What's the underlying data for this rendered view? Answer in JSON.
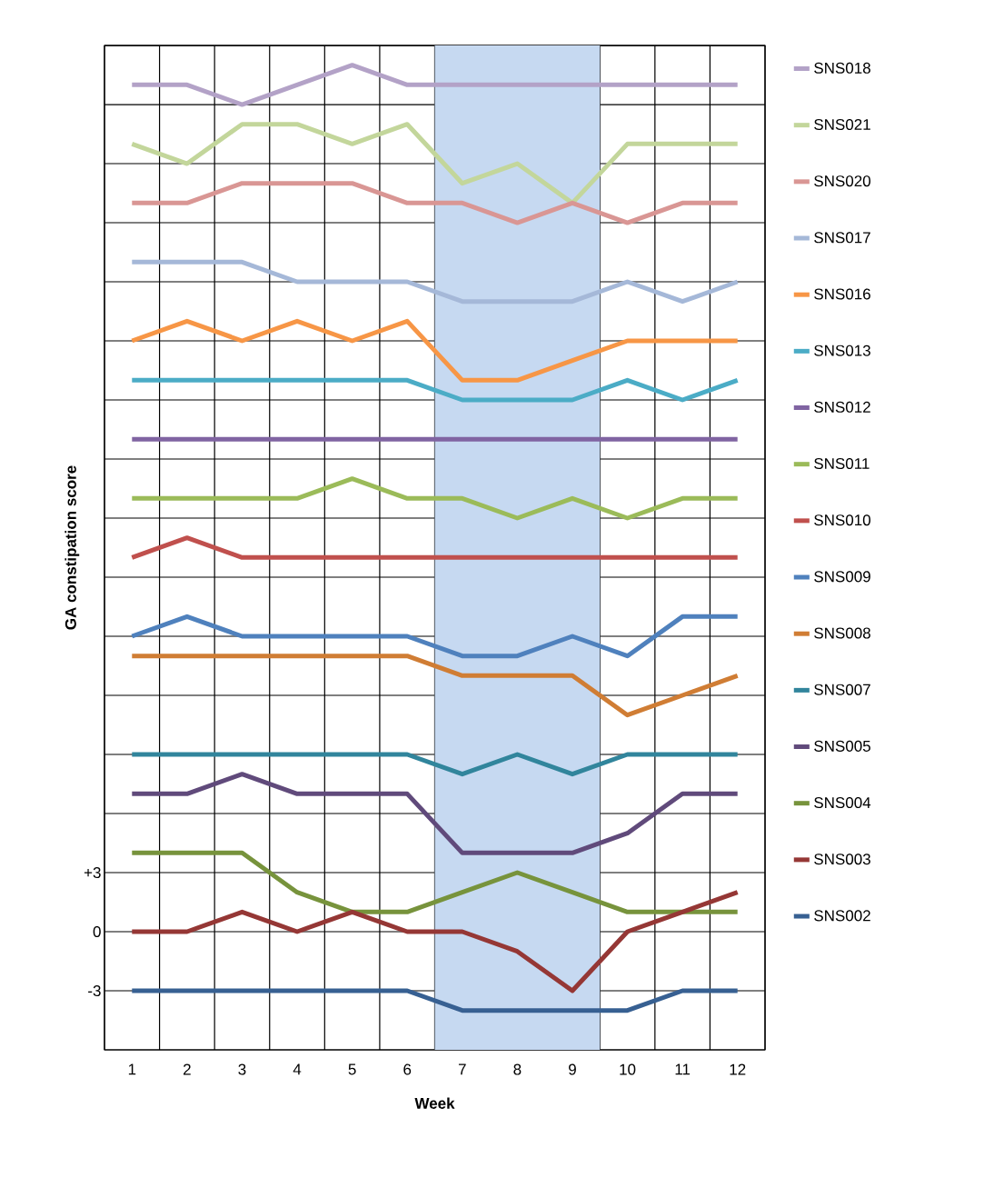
{
  "chart_data": {
    "type": "line",
    "xlabel": "Week",
    "ylabel": "GA constipation  score",
    "x": [
      1,
      2,
      3,
      4,
      5,
      6,
      7,
      8,
      9,
      10,
      11,
      12
    ],
    "xlim": [
      0.5,
      12.5
    ],
    "xticks": [
      1,
      2,
      3,
      4,
      5,
      6,
      7,
      8,
      9,
      10,
      11,
      12
    ],
    "ylim": [
      -6,
      45
    ],
    "yticks": [
      {
        "value": -6,
        "label": null
      },
      {
        "value": -3,
        "label": "-3"
      },
      {
        "value": 0,
        "label": "0"
      },
      {
        "value": 3,
        "label": "+3"
      },
      {
        "value": 6,
        "label": null
      },
      {
        "value": 9,
        "label": null
      },
      {
        "value": 12,
        "label": null
      },
      {
        "value": 15,
        "label": null
      },
      {
        "value": 18,
        "label": null
      },
      {
        "value": 21,
        "label": null
      },
      {
        "value": 24,
        "label": null
      },
      {
        "value": 27,
        "label": null
      },
      {
        "value": 30,
        "label": null
      },
      {
        "value": 33,
        "label": null
      },
      {
        "value": 36,
        "label": null
      },
      {
        "value": 39,
        "label": null
      },
      {
        "value": 42,
        "label": null
      },
      {
        "value": 45,
        "label": null
      }
    ],
    "grid": true,
    "legend": "right",
    "marker": "none",
    "line_style": "solid",
    "bands": [
      {
        "axis": "x",
        "from": 6.5,
        "to": 9.5,
        "color": "#c6d9f1"
      }
    ],
    "series": [
      {
        "name": "SNS018",
        "color": "#b3a2c7",
        "values": [
          43,
          43,
          42,
          43,
          44,
          43,
          43,
          43,
          43,
          43,
          43,
          43
        ]
      },
      {
        "name": "SNS021",
        "color": "#c3d69b",
        "values": [
          40,
          39,
          41,
          41,
          40,
          41,
          38,
          39,
          37,
          40,
          40,
          40
        ]
      },
      {
        "name": "SNS020",
        "color": "#d99694",
        "values": [
          37,
          37,
          38,
          38,
          38,
          37,
          37,
          36,
          37,
          36,
          37,
          37
        ]
      },
      {
        "name": "SNS017",
        "color": "#a5b8d8",
        "values": [
          34,
          34,
          34,
          33,
          33,
          33,
          32,
          32,
          32,
          33,
          32,
          33
        ]
      },
      {
        "name": "SNS016",
        "color": "#f79646",
        "values": [
          30,
          31,
          30,
          31,
          30,
          31,
          28,
          28,
          29,
          30,
          30,
          30
        ]
      },
      {
        "name": "SNS013",
        "color": "#4bacc6",
        "values": [
          28,
          28,
          28,
          28,
          28,
          28,
          27,
          27,
          27,
          28,
          27,
          28
        ]
      },
      {
        "name": "SNS012",
        "color": "#8064a2",
        "values": [
          25,
          25,
          25,
          25,
          25,
          25,
          25,
          25,
          25,
          25,
          25,
          25
        ]
      },
      {
        "name": "SNS011",
        "color": "#9bbb59",
        "values": [
          22,
          22,
          22,
          22,
          23,
          22,
          22,
          21,
          22,
          21,
          22,
          22
        ]
      },
      {
        "name": "SNS010",
        "color": "#c0504d",
        "values": [
          19,
          20,
          19,
          19,
          19,
          19,
          19,
          19,
          19,
          19,
          19,
          19
        ]
      },
      {
        "name": "SNS009",
        "color": "#4f81bd",
        "values": [
          15,
          16,
          15,
          15,
          15,
          15,
          14,
          14,
          15,
          14,
          16,
          16
        ]
      },
      {
        "name": "SNS008",
        "color": "#d07d34",
        "values": [
          14,
          14,
          14,
          14,
          14,
          14,
          13,
          13,
          13,
          11,
          12,
          13
        ]
      },
      {
        "name": "SNS007",
        "color": "#31859c",
        "values": [
          9,
          9,
          9,
          9,
          9,
          9,
          8,
          9,
          8,
          9,
          9,
          9
        ]
      },
      {
        "name": "SNS005",
        "color": "#604a7b",
        "values": [
          7,
          7,
          8,
          7,
          7,
          7,
          4,
          4,
          4,
          5,
          7,
          7
        ]
      },
      {
        "name": "SNS004",
        "color": "#77933c",
        "values": [
          4,
          4,
          4,
          2,
          1,
          1,
          2,
          3,
          2,
          1,
          1,
          1
        ]
      },
      {
        "name": "SNS003",
        "color": "#953735",
        "values": [
          0,
          0,
          1,
          0,
          1,
          0,
          0,
          -1,
          -3,
          0,
          1,
          2
        ]
      },
      {
        "name": "SNS002",
        "color": "#376092",
        "values": [
          -3,
          -3,
          -3,
          -3,
          -3,
          -3,
          -4,
          -4,
          -4,
          -4,
          -3,
          -3
        ]
      }
    ]
  }
}
